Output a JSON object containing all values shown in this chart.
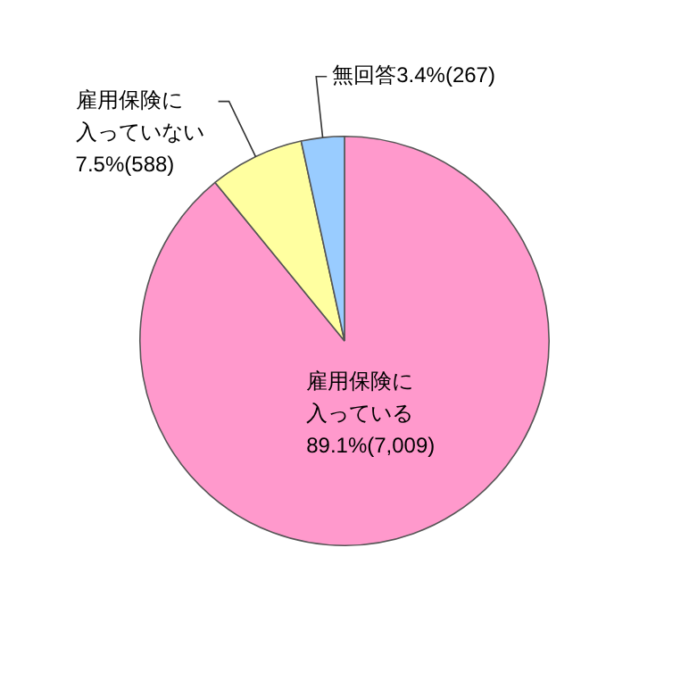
{
  "chart_data": {
    "type": "pie",
    "categories": [
      "雇用保険に入っている",
      "雇用保険に入っていない",
      "無回答"
    ],
    "values": [
      89.1,
      7.5,
      3.4
    ],
    "colors": [
      "#ff99cc",
      "#ffffa0",
      "#99ccff"
    ],
    "value_labels": [
      "89.1%(7,009)",
      "7.5%(588)",
      "3.4%(267)"
    ],
    "legend": false
  }
}
